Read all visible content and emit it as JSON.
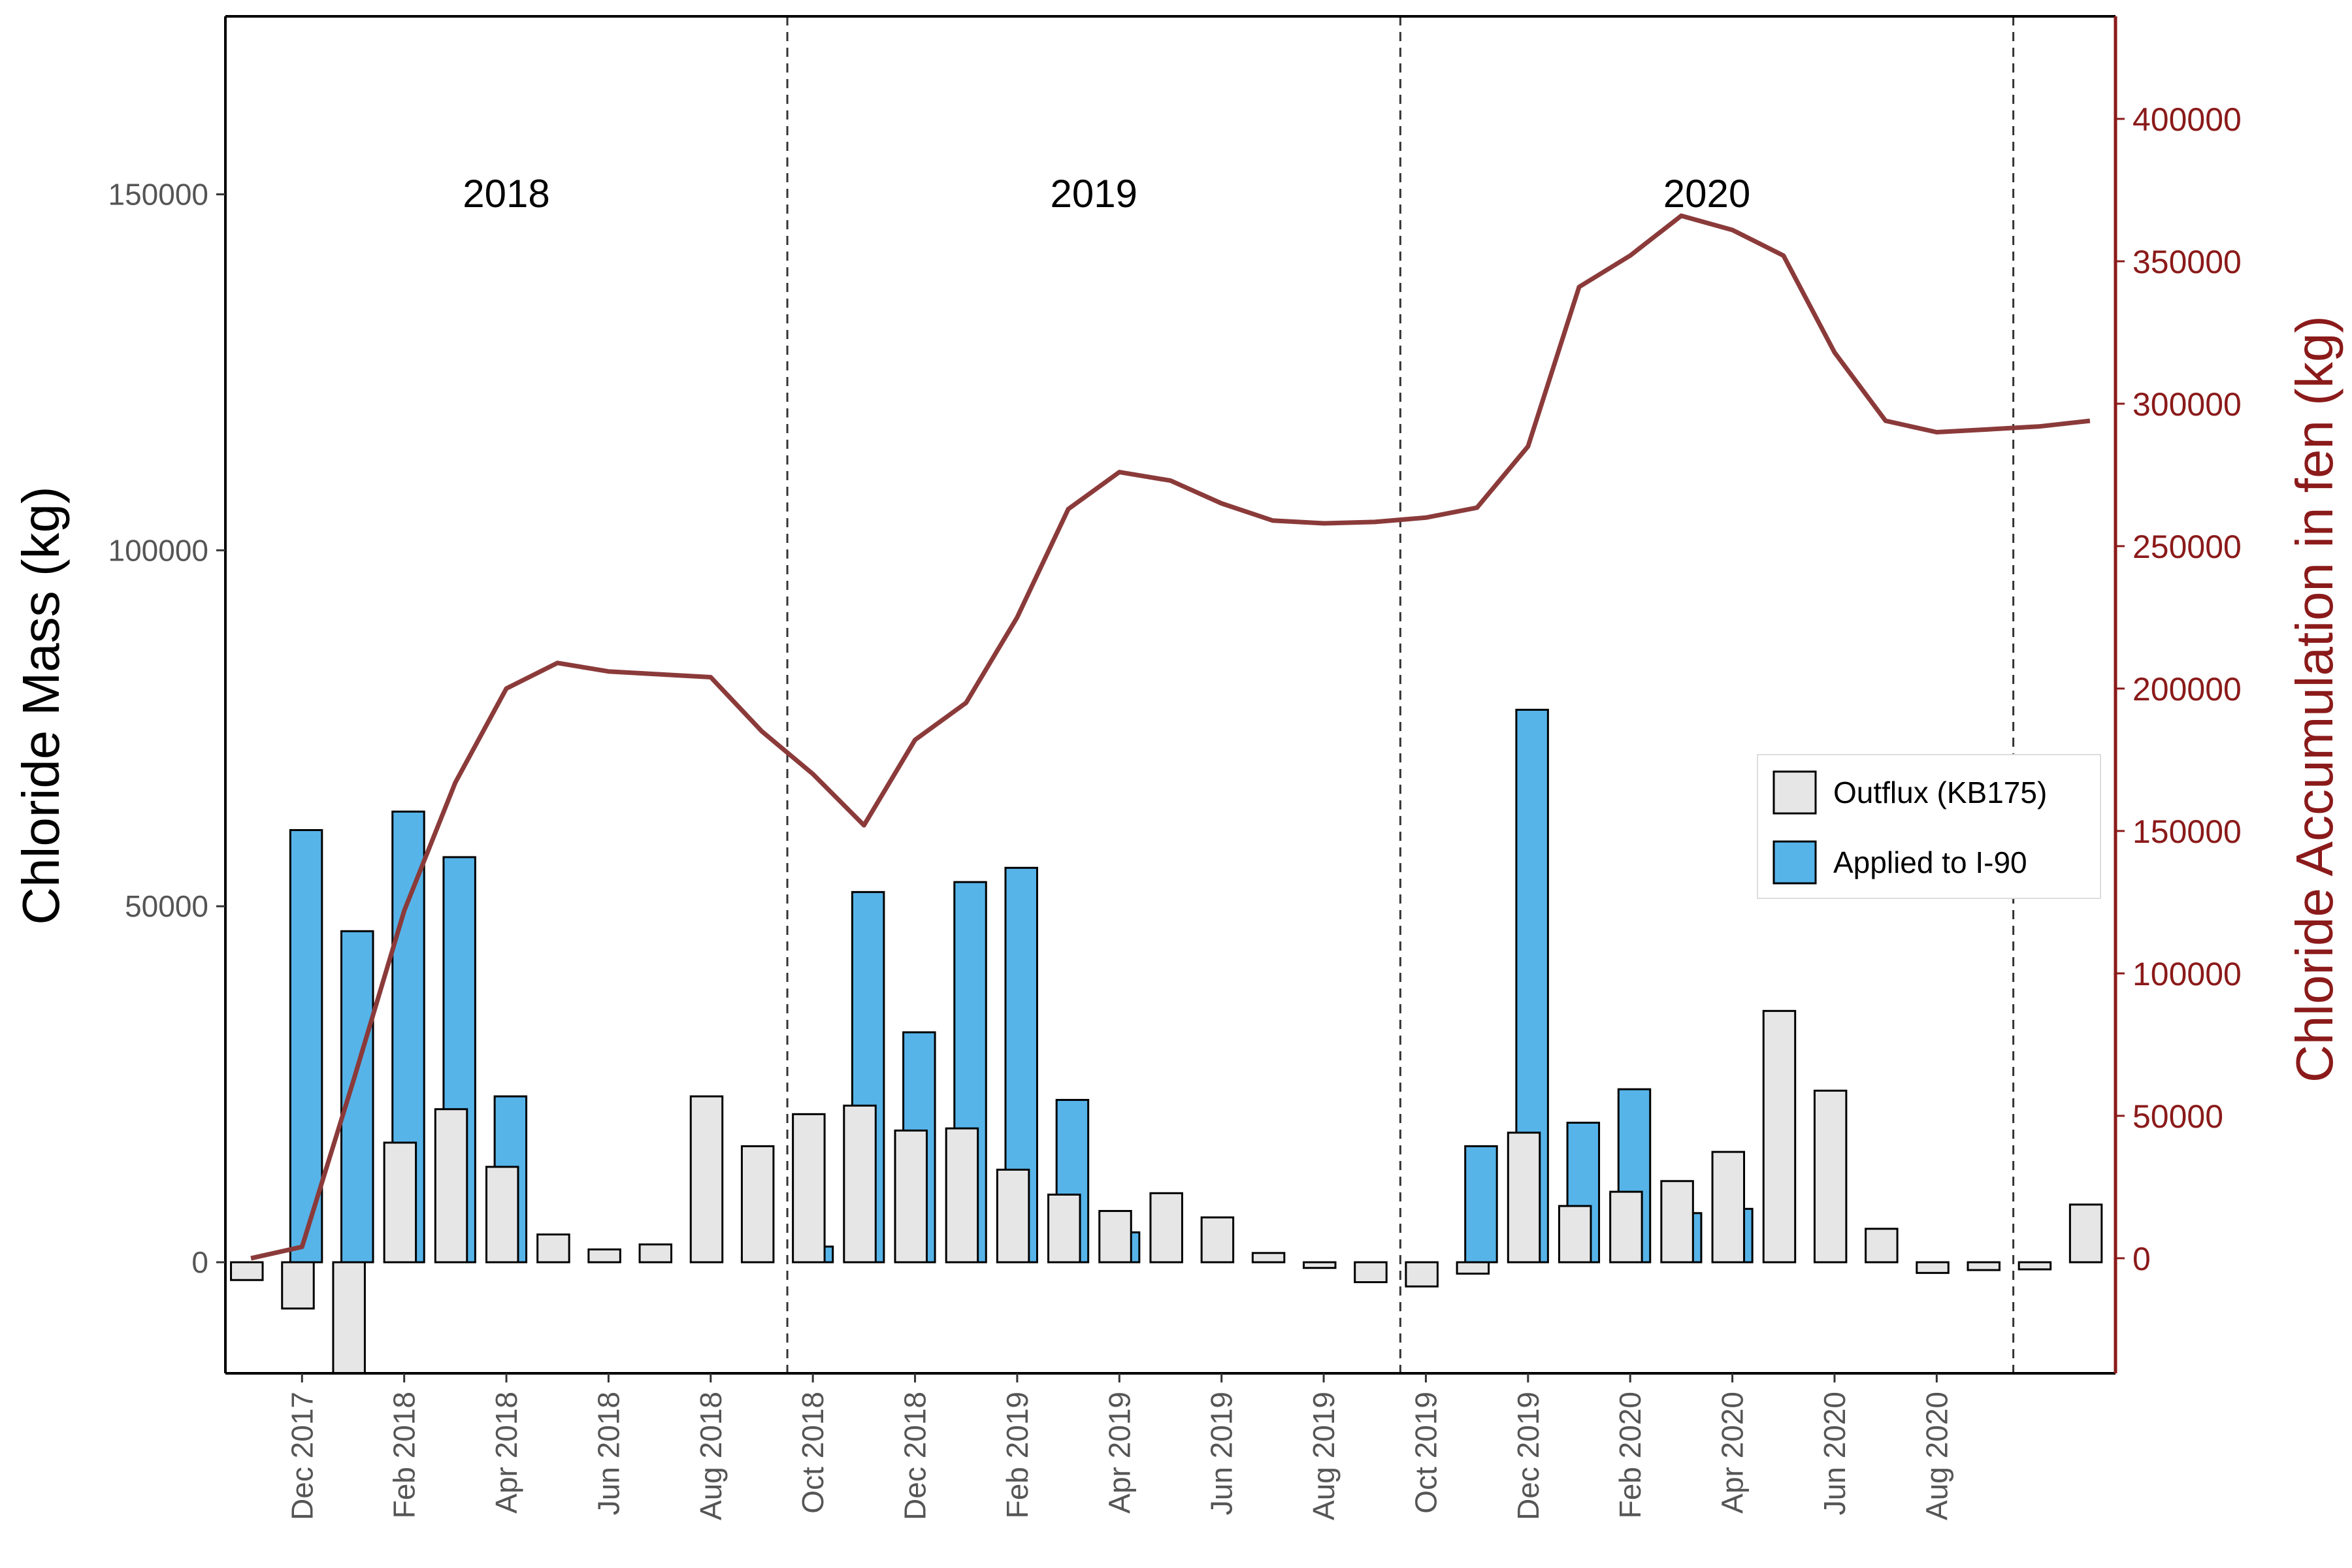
{
  "chart_data": {
    "type": "bar",
    "ylabel": "Chloride Mass (kg)",
    "ylabel_right": "Chloride Accumulation in fen (kg)",
    "ylim": [
      -15600,
      175000
    ],
    "y2lim": [
      -40400,
      436000
    ],
    "yticks": [
      0,
      50000,
      100000,
      150000
    ],
    "y2ticks": [
      0,
      50000,
      100000,
      150000,
      200000,
      250000,
      300000,
      350000,
      400000
    ],
    "yticks_labels": [
      "0",
      "50000",
      "100000",
      "150000"
    ],
    "y2ticks_labels": [
      "0",
      "50000",
      "100000",
      "150000",
      "200000",
      "250000",
      "300000",
      "350000",
      "400000"
    ],
    "months": [
      "Nov 2017",
      "Dec 2017",
      "Jan 2018",
      "Feb 2018",
      "Mar 2018",
      "Apr 2018",
      "May 2018",
      "Jun 2018",
      "Jul 2018",
      "Aug 2018",
      "Sep 2018",
      "Oct 2018",
      "Nov 2018",
      "Dec 2018",
      "Jan 2019",
      "Feb 2019",
      "Mar 2019",
      "Apr 2019",
      "May 2019",
      "Jun 2019",
      "Jul 2019",
      "Aug 2019",
      "Sep 2019",
      "Oct 2019",
      "Nov 2019",
      "Dec 2019",
      "Jan 2020",
      "Feb 2020",
      "Mar 2020",
      "Apr 2020",
      "May 2020",
      "Jun 2020",
      "Jul 2020",
      "Aug 2020",
      "Sep 2020",
      "Oct 2020",
      "Nov 2020"
    ],
    "xtick_labels": [
      {
        "index": 1,
        "label": "Dec 2017"
      },
      {
        "index": 3,
        "label": "Feb 2018"
      },
      {
        "index": 5,
        "label": "Apr 2018"
      },
      {
        "index": 7,
        "label": "Jun 2018"
      },
      {
        "index": 9,
        "label": "Aug 2018"
      },
      {
        "index": 11,
        "label": "Oct 2018"
      },
      {
        "index": 13,
        "label": "Dec 2018"
      },
      {
        "index": 15,
        "label": "Feb 2019"
      },
      {
        "index": 17,
        "label": "Apr 2019"
      },
      {
        "index": 19,
        "label": "Jun 2019"
      },
      {
        "index": 21,
        "label": "Aug 2019"
      },
      {
        "index": 23,
        "label": "Oct 2019"
      },
      {
        "index": 25,
        "label": "Dec 2019"
      },
      {
        "index": 27,
        "label": "Feb 2020"
      },
      {
        "index": 29,
        "label": "Apr 2020"
      },
      {
        "index": 31,
        "label": "Jun 2020"
      },
      {
        "index": 33,
        "label": "Aug 2020"
      }
    ],
    "water_years": [
      {
        "label": "2018",
        "start_index": 0,
        "end_index": 11
      },
      {
        "label": "2019",
        "start_index": 11,
        "end_index": 23
      },
      {
        "label": "2020",
        "start_index": 23,
        "end_index": 35
      }
    ],
    "boundaries": [
      11,
      23,
      35
    ],
    "series": [
      {
        "name": "Outflux (KB175)",
        "color": "#e6e6e6",
        "values": [
          -2500,
          -6500,
          -15600,
          16800,
          21500,
          13400,
          3900,
          1800,
          2500,
          23300,
          16300,
          20800,
          22000,
          18500,
          18800,
          13000,
          9500,
          7200,
          9700,
          6300,
          1300,
          -800,
          -2800,
          -3400,
          -1600,
          18200,
          7900,
          9900,
          11400,
          15500,
          35300,
          24100,
          4700,
          -1500,
          -1100,
          -1000,
          8100
        ]
      },
      {
        "name": "Applied to I-90",
        "color": "#56b4e9",
        "values": [
          0,
          60700,
          46500,
          63300,
          56900,
          23300,
          0,
          0,
          0,
          0,
          0,
          2200,
          52000,
          32300,
          53400,
          55400,
          22800,
          4200,
          0,
          0,
          0,
          0,
          0,
          0,
          16300,
          77600,
          19600,
          24300,
          6900,
          7500,
          0,
          0,
          0,
          0,
          0,
          0,
          0
        ]
      },
      {
        "name": "Accumulation",
        "type": "line",
        "axis": "right",
        "color": "#8b3a3a",
        "values": [
          0,
          4000,
          62000,
          122000,
          167000,
          200000,
          209000,
          206000,
          205000,
          204000,
          185000,
          170000,
          152000,
          182000,
          195000,
          225000,
          263000,
          276000,
          273000,
          265000,
          259000,
          258000,
          258500,
          260000,
          263500,
          285000,
          341000,
          352000,
          366000,
          361000,
          352000,
          318000,
          294000,
          290000,
          291000,
          292000,
          294000
        ]
      }
    ],
    "legend": {
      "placement": "right-middle",
      "entries": [
        "Outflux (KB175)",
        "Applied to I-90"
      ]
    },
    "grid": false
  }
}
